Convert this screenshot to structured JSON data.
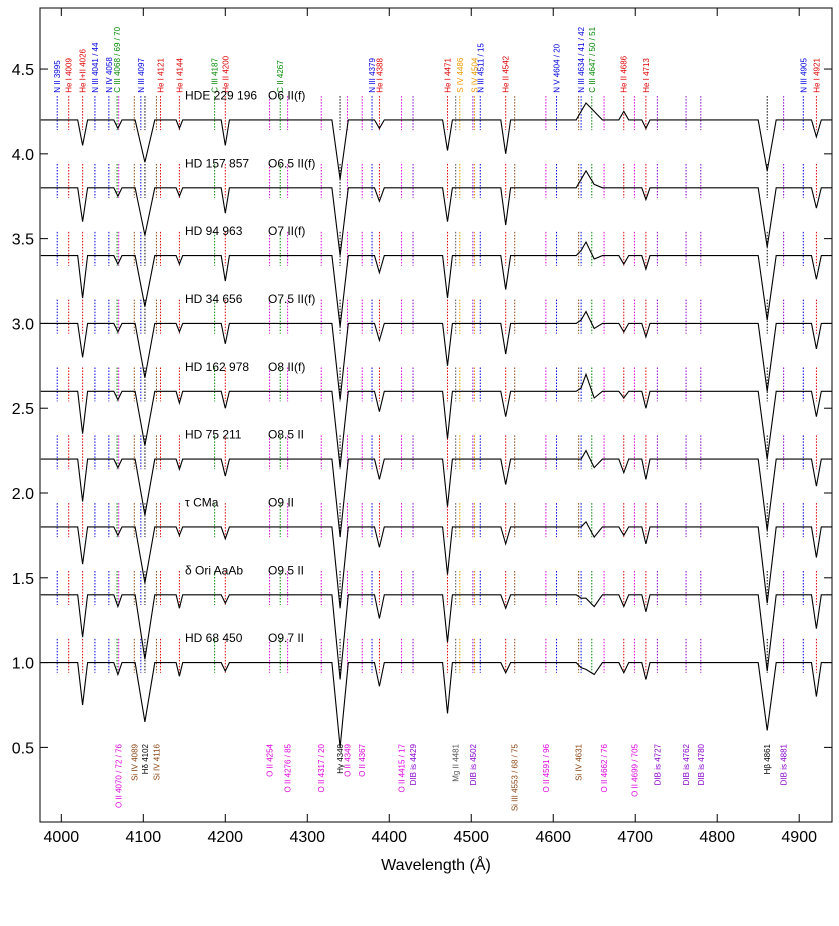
{
  "chart_data": {
    "type": "line",
    "xlabel": "Wavelength (Å)",
    "xlim": [
      3974,
      4940
    ],
    "ylim": [
      0.06,
      4.86
    ],
    "xticks": [
      4000,
      4100,
      4200,
      4300,
      4400,
      4500,
      4600,
      4700,
      4800,
      4900
    ],
    "yticks": [
      0.5,
      {
        "value": 1,
        "label": "1.0"
      },
      1.5,
      {
        "value": 2,
        "label": "2.0"
      },
      2.5,
      {
        "value": 3,
        "label": "3.0"
      },
      3.5,
      {
        "value": 4,
        "label": "4.0"
      },
      4.5
    ],
    "x": [
      3975,
      4020,
      4026,
      4032,
      4064,
      4069,
      4074,
      4090,
      4102,
      4114,
      4140,
      4144,
      4148,
      4195,
      4200,
      4205,
      4330,
      4340,
      4350,
      4382,
      4388,
      4394,
      4465,
      4471,
      4477,
      4536,
      4542,
      4548,
      4628,
      4634,
      4640,
      4650,
      4660,
      4680,
      4686,
      4692,
      4708,
      4713,
      4718,
      4850,
      4861,
      4872,
      4915,
      4921,
      4927,
      4940
    ],
    "series": [
      {
        "name": "HDE 229 196",
        "sptype": "O6 II(f)",
        "color": "#000",
        "values": [
          4.2,
          4.2,
          4.05,
          4.2,
          4.2,
          4.15,
          4.2,
          4.2,
          3.95,
          4.2,
          4.2,
          4.15,
          4.2,
          4.2,
          4.05,
          4.2,
          4.2,
          3.85,
          4.2,
          4.2,
          4.15,
          4.2,
          4.2,
          4.02,
          4.2,
          4.2,
          4.0,
          4.2,
          4.2,
          4.25,
          4.3,
          4.25,
          4.2,
          4.2,
          4.25,
          4.2,
          4.2,
          4.15,
          4.2,
          4.2,
          3.9,
          4.2,
          4.2,
          4.1,
          4.2,
          4.2
        ]
      },
      {
        "name": "HD 157 857",
        "sptype": "O6.5 II(f)",
        "color": "#000",
        "values": [
          3.8,
          3.8,
          3.6,
          3.8,
          3.8,
          3.75,
          3.8,
          3.8,
          3.52,
          3.8,
          3.8,
          3.75,
          3.8,
          3.8,
          3.65,
          3.8,
          3.8,
          3.4,
          3.8,
          3.8,
          3.72,
          3.8,
          3.8,
          3.6,
          3.8,
          3.8,
          3.58,
          3.8,
          3.8,
          3.85,
          3.9,
          3.82,
          3.8,
          3.8,
          3.8,
          3.8,
          3.8,
          3.73,
          3.8,
          3.8,
          3.45,
          3.8,
          3.8,
          3.68,
          3.8,
          3.8
        ]
      },
      {
        "name": "HD 94 963",
        "sptype": "O7 II(f)",
        "color": "#000",
        "values": [
          3.4,
          3.4,
          3.15,
          3.4,
          3.4,
          3.35,
          3.4,
          3.4,
          3.1,
          3.4,
          3.4,
          3.35,
          3.4,
          3.4,
          3.25,
          3.4,
          3.4,
          2.98,
          3.4,
          3.4,
          3.3,
          3.4,
          3.4,
          3.15,
          3.4,
          3.4,
          3.2,
          3.4,
          3.4,
          3.43,
          3.48,
          3.38,
          3.4,
          3.4,
          3.35,
          3.4,
          3.4,
          3.32,
          3.4,
          3.4,
          3.02,
          3.4,
          3.4,
          3.26,
          3.4,
          3.4
        ]
      },
      {
        "name": "HD 34 656",
        "sptype": "O7.5 II(f)",
        "color": "#000",
        "values": [
          3,
          3,
          2.8,
          3,
          3,
          2.95,
          3,
          3,
          2.68,
          3,
          3,
          2.95,
          3,
          3,
          2.88,
          3,
          3,
          2.55,
          3,
          3,
          2.9,
          3,
          3,
          2.75,
          3,
          3,
          2.82,
          3,
          3,
          3.02,
          3.07,
          2.97,
          3,
          3,
          2.95,
          3,
          3,
          2.92,
          3,
          3,
          2.6,
          3,
          3,
          2.85,
          3,
          3
        ]
      },
      {
        "name": "HD 162 978",
        "sptype": "O8 II(f)",
        "color": "#000",
        "values": [
          2.6,
          2.6,
          2.35,
          2.6,
          2.6,
          2.55,
          2.6,
          2.6,
          2.28,
          2.6,
          2.6,
          2.53,
          2.6,
          2.6,
          2.5,
          2.6,
          2.6,
          2.15,
          2.6,
          2.6,
          2.48,
          2.6,
          2.6,
          2.32,
          2.6,
          2.6,
          2.45,
          2.6,
          2.6,
          2.62,
          2.7,
          2.56,
          2.6,
          2.6,
          2.56,
          2.6,
          2.6,
          2.5,
          2.6,
          2.6,
          2.2,
          2.6,
          2.6,
          2.45,
          2.6,
          2.6
        ]
      },
      {
        "name": "HD 75 211",
        "sptype": "O8.5 II",
        "color": "#000",
        "values": [
          2.2,
          2.2,
          1.95,
          2.2,
          2.2,
          2.15,
          2.2,
          2.2,
          1.87,
          2.2,
          2.2,
          2.14,
          2.2,
          2.2,
          2.1,
          2.2,
          2.2,
          1.74,
          2.2,
          2.2,
          2.08,
          2.2,
          2.2,
          1.92,
          2.2,
          2.2,
          2.05,
          2.2,
          2.2,
          2.2,
          2.25,
          2.15,
          2.2,
          2.2,
          2.12,
          2.2,
          2.2,
          2.08,
          2.2,
          2.2,
          1.78,
          2.2,
          2.2,
          2.04,
          2.2,
          2.2
        ]
      },
      {
        "name": "τ CMa",
        "sptype": "O9 II",
        "color": "#000",
        "values": [
          1.8,
          1.8,
          1.58,
          1.8,
          1.8,
          1.75,
          1.8,
          1.8,
          1.47,
          1.8,
          1.8,
          1.75,
          1.8,
          1.8,
          1.73,
          1.8,
          1.8,
          1.32,
          1.8,
          1.8,
          1.68,
          1.8,
          1.8,
          1.52,
          1.8,
          1.8,
          1.7,
          1.8,
          1.8,
          1.8,
          1.83,
          1.74,
          1.8,
          1.8,
          1.75,
          1.8,
          1.8,
          1.7,
          1.8,
          1.8,
          1.35,
          1.8,
          1.8,
          1.62,
          1.8,
          1.8
        ]
      },
      {
        "name": "δ Ori AaAb",
        "sptype": "O9.5 II",
        "color": "#000",
        "values": [
          1.4,
          1.4,
          1.15,
          1.4,
          1.4,
          1.33,
          1.4,
          1.4,
          1.02,
          1.4,
          1.4,
          1.32,
          1.4,
          1.4,
          1.35,
          1.4,
          1.4,
          0.9,
          1.4,
          1.4,
          1.26,
          1.4,
          1.4,
          1.12,
          1.4,
          1.4,
          1.32,
          1.4,
          1.4,
          1.38,
          1.38,
          1.33,
          1.4,
          1.4,
          1.33,
          1.4,
          1.4,
          1.3,
          1.4,
          1.4,
          0.95,
          1.4,
          1.4,
          1.2,
          1.4,
          1.4
        ]
      },
      {
        "name": "HD 68 450",
        "sptype": "O9.7 II",
        "color": "#000",
        "values": [
          1,
          1,
          0.75,
          1,
          1,
          0.93,
          1,
          1,
          0.65,
          1,
          1,
          0.92,
          1,
          1,
          0.95,
          1,
          1,
          0.5,
          1,
          1,
          0.86,
          1,
          1,
          0.7,
          1,
          1,
          0.94,
          1,
          1,
          0.97,
          0.96,
          0.93,
          1,
          1,
          0.94,
          1,
          1,
          0.9,
          1,
          1,
          0.6,
          1,
          1,
          0.8,
          1,
          1
        ]
      }
    ],
    "top_lines": [
      {
        "label": "N II 3995",
        "color": "#0000dd",
        "wavelength": 3995
      },
      {
        "label": "He I 4009",
        "color": "#dd0000",
        "wavelength": 4009
      },
      {
        "label": "He I+II 4026",
        "color": "#dd0000",
        "wavelength": 4026
      },
      {
        "label": "N III 4041 / 44",
        "color": "#0000dd",
        "wavelength": 4041
      },
      {
        "label": "N IV 4058",
        "color": "#0000dd",
        "wavelength": 4058
      },
      {
        "label": "C III 4068 / 69 / 70",
        "color": "#008800",
        "wavelength": 4068
      },
      {
        "label": "N III 4097",
        "color": "#0000dd",
        "wavelength": 4097
      },
      {
        "label": "He I 4121",
        "color": "#dd0000",
        "wavelength": 4121
      },
      {
        "label": "He I 4144",
        "color": "#dd0000",
        "wavelength": 4144
      },
      {
        "label": "C III 4187",
        "color": "#008800",
        "wavelength": 4187
      },
      {
        "label": "He II 4200",
        "color": "#dd0000",
        "wavelength": 4200
      },
      {
        "label": "C II 4267",
        "color": "#008800",
        "wavelength": 4267
      },
      {
        "label": "N III 4379",
        "color": "#0000dd",
        "wavelength": 4379
      },
      {
        "label": "He I 4388",
        "color": "#dd0000",
        "wavelength": 4388
      },
      {
        "label": "He I 4471",
        "color": "#dd0000",
        "wavelength": 4471
      },
      {
        "label": "S IV 4486",
        "color": "#ee9900",
        "wavelength": 4486
      },
      {
        "label": "S IV 4504",
        "color": "#ee9900",
        "wavelength": 4504
      },
      {
        "label": "N III 4511 / 15",
        "color": "#0000dd",
        "wavelength": 4511
      },
      {
        "label": "He II 4542",
        "color": "#dd0000",
        "wavelength": 4542
      },
      {
        "label": "N V 4604 / 20",
        "color": "#0000dd",
        "wavelength": 4604
      },
      {
        "label": "N III 4634 / 41 / 42",
        "color": "#0000dd",
        "wavelength": 4634
      },
      {
        "label": "C III 4647 / 50 / 51",
        "color": "#008800",
        "wavelength": 4647
      },
      {
        "label": "He II 4686",
        "color": "#dd0000",
        "wavelength": 4686
      },
      {
        "label": "He I 4713",
        "color": "#dd0000",
        "wavelength": 4713
      },
      {
        "label": "N III 4905",
        "color": "#0000dd",
        "wavelength": 4905
      },
      {
        "label": "He I 4921",
        "color": "#dd0000",
        "wavelength": 4921
      }
    ],
    "bottom_lines": [
      {
        "label": "O II 4070 / 72 / 76",
        "color": "#dd00dd",
        "wavelength": 4070
      },
      {
        "label": "Si IV 4089",
        "color": "#8b4513",
        "wavelength": 4089
      },
      {
        "label": "Hδ 4102",
        "color": "#000000",
        "wavelength": 4102
      },
      {
        "label": "Si IV 4116",
        "color": "#8b4513",
        "wavelength": 4116
      },
      {
        "label": "O II 4254",
        "color": "#dd00dd",
        "wavelength": 4254
      },
      {
        "label": "O II 4276 / 85",
        "color": "#dd00dd",
        "wavelength": 4276
      },
      {
        "label": "O II 4317 / 20",
        "color": "#dd00dd",
        "wavelength": 4317
      },
      {
        "label": "Hγ 4340",
        "color": "#000000",
        "wavelength": 4340
      },
      {
        "label": "O II 4349",
        "color": "#dd00dd",
        "wavelength": 4349
      },
      {
        "label": "O II 4367",
        "color": "#dd00dd",
        "wavelength": 4367
      },
      {
        "label": "O II 4415 / 17",
        "color": "#dd00dd",
        "wavelength": 4415
      },
      {
        "label": "DIB is 4429",
        "color": "#8800cc",
        "wavelength": 4429
      },
      {
        "label": "Mg II 4481",
        "color": "#555555",
        "wavelength": 4481
      },
      {
        "label": "DIB is 4502",
        "color": "#8800cc",
        "wavelength": 4502
      },
      {
        "label": "Si III 4553 / 68 / 75",
        "color": "#8b4513",
        "wavelength": 4553
      },
      {
        "label": "O II 4591 / 96",
        "color": "#dd00dd",
        "wavelength": 4591
      },
      {
        "label": "Si IV 4631",
        "color": "#8b4513",
        "wavelength": 4631
      },
      {
        "label": "O II 4662 / 76",
        "color": "#dd00dd",
        "wavelength": 4662
      },
      {
        "label": "O II 4699 / 705",
        "color": "#dd00dd",
        "wavelength": 4699
      },
      {
        "label": "DIB is 4727",
        "color": "#8800cc",
        "wavelength": 4727
      },
      {
        "label": "DIB is 4762",
        "color": "#8800cc",
        "wavelength": 4762
      },
      {
        "label": "DIB is 4780",
        "color": "#8800cc",
        "wavelength": 4780
      },
      {
        "label": "Hβ 4861",
        "color": "#000000",
        "wavelength": 4861
      },
      {
        "label": "DIB is 4881",
        "color": "#8800cc",
        "wavelength": 4881
      }
    ]
  }
}
